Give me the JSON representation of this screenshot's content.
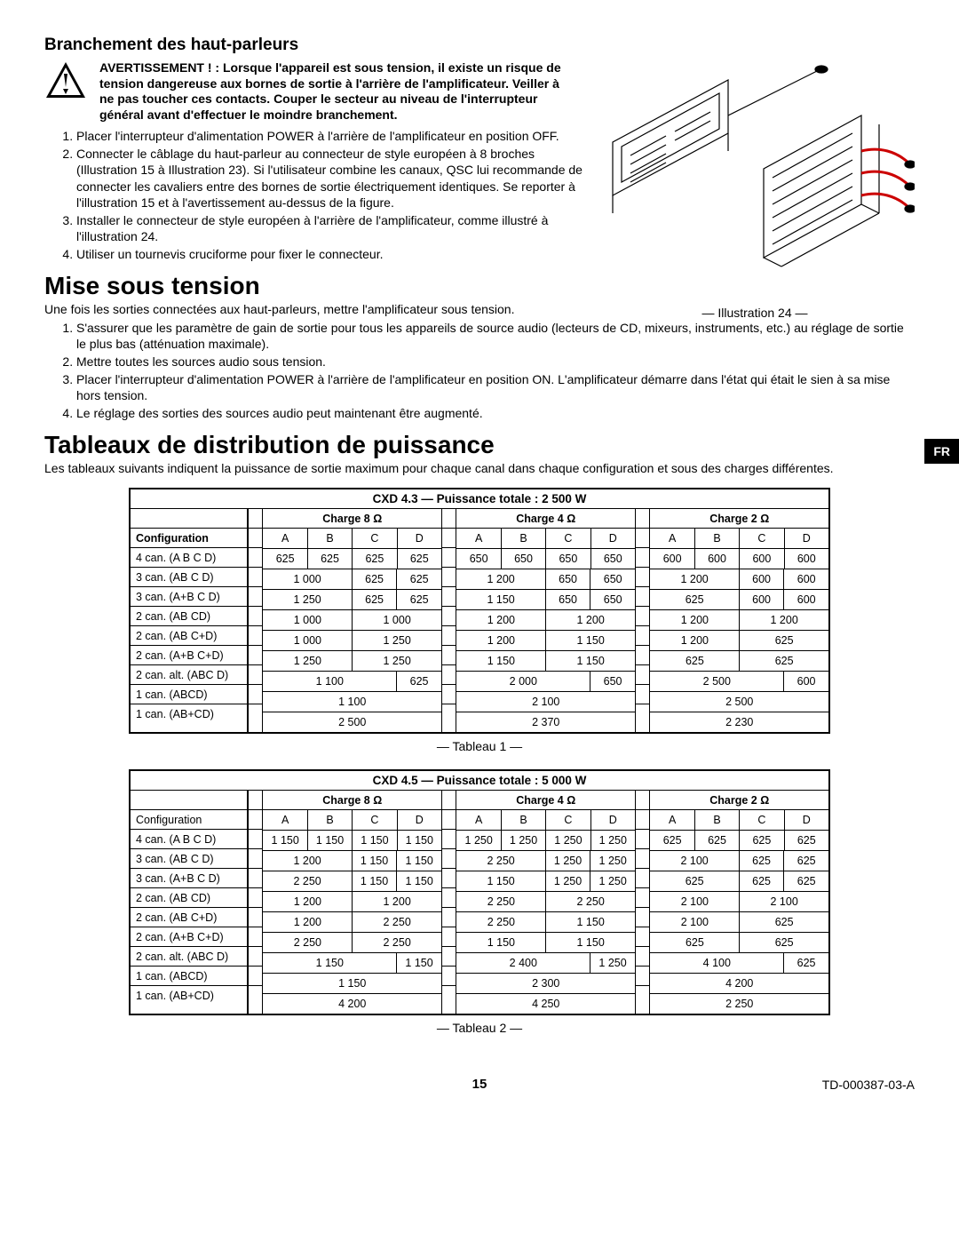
{
  "lang_tab": "FR",
  "section1": {
    "title": "Branchement des haut-parleurs",
    "warn_label": "AVERTISSEMENT ! :",
    "warn_body": "Lorsque l'appareil est sous tension, il existe un risque de tension dangereuse aux bornes de sortie à l'arrière de l'amplificateur. Veiller à ne pas toucher ces contacts. Couper le secteur au niveau de l'interrupteur général avant d'effectuer le moindre branchement.",
    "steps": [
      "Placer l'interrupteur d'alimentation POWER à l'arrière de l'amplificateur en position OFF.",
      "Connecter le câblage du haut-parleur au connecteur de style européen à 8 broches (Illustration 15 à Illustration 23). Si l'utilisateur combine les canaux, QSC lui recommande de connecter les cavaliers entre des bornes de sortie électriquement identiques. Se reporter à l'illustration 15 et à l'avertissement au-dessus de la figure.",
      "Installer le connecteur de style européen à l'arrière de l'amplificateur, comme illustré à l'illustration 24.",
      "Utiliser un tournevis cruciforme pour fixer le connecteur."
    ]
  },
  "illus_caption": "— Illustration 24 —",
  "section2": {
    "title": "Mise sous tension",
    "intro": "Une fois les sorties connectées aux haut-parleurs, mettre l'amplificateur sous tension.",
    "steps": [
      "S'assurer que les paramètre de gain de sortie pour tous les appareils de source audio (lecteurs de CD, mixeurs, instruments, etc.) au réglage de sortie le plus bas (atténuation maximale).",
      "Mettre toutes les sources audio sous tension.",
      "Placer l'interrupteur d'alimentation POWER à l'arrière de l'amplificateur en position ON. L'amplificateur démarre dans l'état qui était le sien à sa mise hors tension.",
      "Le réglage des sorties des sources audio peut maintenant être augmenté."
    ]
  },
  "section3": {
    "title": "Tableaux de distribution de puissance",
    "intro": "Les tableaux suivants indiquent la puissance de sortie maximum pour chaque canal dans chaque configuration et sous des charges différentes."
  },
  "tables_common": {
    "config_header": "Configuration",
    "cols": [
      "A",
      "B",
      "C",
      "D"
    ],
    "loads": [
      "Charge 8 Ω",
      "Charge 4 Ω",
      "Charge 2 Ω"
    ],
    "configs": [
      "4 can. (A B C D)",
      "3 can. (AB C D)",
      "3 can. (A+B C D)",
      "2 can. (AB CD)",
      "2 can. (AB C+D)",
      "2 can. (A+B C+D)",
      "2 can. alt. (ABC D)",
      "1 can. (ABCD)",
      "1 can. (AB+CD)"
    ]
  },
  "table1": {
    "title": "CXD 4.3 — Puissance totale : 2 500 W",
    "caption": "— Tableau 1 —",
    "config_hdr_bold": true,
    "data": [
      [
        [
          [
            "625",
            "625",
            "625",
            "625"
          ]
        ],
        [
          [
            "650",
            "650",
            "650",
            "650"
          ]
        ],
        [
          [
            "600",
            "600",
            "600",
            "600"
          ]
        ]
      ],
      [
        [
          [
            "1 000",
            "",
            "625",
            "625"
          ],
          [
            2,
            1,
            1
          ]
        ],
        [
          [
            "1 200",
            "",
            "650",
            "650"
          ],
          [
            2,
            1,
            1
          ]
        ],
        [
          [
            "1 200",
            "",
            "600",
            "600"
          ],
          [
            2,
            1,
            1
          ]
        ]
      ],
      [
        [
          [
            "1 250",
            "",
            "625",
            "625"
          ],
          [
            2,
            1,
            1
          ]
        ],
        [
          [
            "1 150",
            "",
            "650",
            "650"
          ],
          [
            2,
            1,
            1
          ]
        ],
        [
          [
            "625",
            "",
            "600",
            "600"
          ],
          [
            2,
            1,
            1
          ]
        ]
      ],
      [
        [
          [
            "1 000",
            "1 000"
          ],
          [
            2,
            2
          ]
        ],
        [
          [
            "1 200",
            "1 200"
          ],
          [
            2,
            2
          ]
        ],
        [
          [
            "1 200",
            "1 200"
          ],
          [
            2,
            2
          ]
        ]
      ],
      [
        [
          [
            "1 000",
            "1 250"
          ],
          [
            2,
            2
          ]
        ],
        [
          [
            "1 200",
            "1 150"
          ],
          [
            2,
            2
          ]
        ],
        [
          [
            "1 200",
            "625"
          ],
          [
            2,
            2
          ]
        ]
      ],
      [
        [
          [
            "1 250",
            "1 250"
          ],
          [
            2,
            2
          ]
        ],
        [
          [
            "1 150",
            "1 150"
          ],
          [
            2,
            2
          ]
        ],
        [
          [
            "625",
            "625"
          ],
          [
            2,
            2
          ]
        ]
      ],
      [
        [
          [
            "1 100",
            "625"
          ],
          [
            3,
            1
          ]
        ],
        [
          [
            "2 000",
            "650"
          ],
          [
            3,
            1
          ]
        ],
        [
          [
            "2 500",
            "600"
          ],
          [
            3,
            1
          ]
        ]
      ],
      [
        [
          [
            "1 100"
          ],
          [
            4
          ]
        ],
        [
          [
            "2 100"
          ],
          [
            4
          ]
        ],
        [
          [
            "2 500"
          ],
          [
            4
          ]
        ]
      ],
      [
        [
          [
            "2 500"
          ],
          [
            4
          ]
        ],
        [
          [
            "2 370"
          ],
          [
            4
          ]
        ],
        [
          [
            "2 230"
          ],
          [
            4
          ]
        ]
      ]
    ]
  },
  "table2": {
    "title": "CXD 4.5 — Puissance totale : 5 000 W",
    "caption": "— Tableau 2 —",
    "config_hdr_bold": false,
    "data": [
      [
        [
          [
            "1 150",
            "1 150",
            "1 150",
            "1 150"
          ]
        ],
        [
          [
            "1 250",
            "1 250",
            "1 250",
            "1 250"
          ]
        ],
        [
          [
            "625",
            "625",
            "625",
            "625"
          ]
        ]
      ],
      [
        [
          [
            "1 200",
            "",
            "1 150",
            "1 150"
          ],
          [
            2,
            1,
            1
          ]
        ],
        [
          [
            "2 250",
            "",
            "1 250",
            "1 250"
          ],
          [
            2,
            1,
            1
          ]
        ],
        [
          [
            "2 100",
            "",
            "625",
            "625"
          ],
          [
            2,
            1,
            1
          ]
        ]
      ],
      [
        [
          [
            "2 250",
            "",
            "1 150",
            "1 150"
          ],
          [
            2,
            1,
            1
          ]
        ],
        [
          [
            "1 150",
            "",
            "1 250",
            "1 250"
          ],
          [
            2,
            1,
            1
          ]
        ],
        [
          [
            "625",
            "",
            "625",
            "625"
          ],
          [
            2,
            1,
            1
          ]
        ]
      ],
      [
        [
          [
            "1 200",
            "1 200"
          ],
          [
            2,
            2
          ]
        ],
        [
          [
            "2 250",
            "2 250"
          ],
          [
            2,
            2
          ]
        ],
        [
          [
            "2 100",
            "2 100"
          ],
          [
            2,
            2
          ]
        ]
      ],
      [
        [
          [
            "1 200",
            "2 250"
          ],
          [
            2,
            2
          ]
        ],
        [
          [
            "2 250",
            "1 150"
          ],
          [
            2,
            2
          ]
        ],
        [
          [
            "2 100",
            "625"
          ],
          [
            2,
            2
          ]
        ]
      ],
      [
        [
          [
            "2 250",
            "2 250"
          ],
          [
            2,
            2
          ]
        ],
        [
          [
            "1 150",
            "1 150"
          ],
          [
            2,
            2
          ]
        ],
        [
          [
            "625",
            "625"
          ],
          [
            2,
            2
          ]
        ]
      ],
      [
        [
          [
            "1 150",
            "1 150"
          ],
          [
            3,
            1
          ]
        ],
        [
          [
            "2 400",
            "1 250"
          ],
          [
            3,
            1
          ]
        ],
        [
          [
            "4 100",
            "625"
          ],
          [
            3,
            1
          ]
        ]
      ],
      [
        [
          [
            "1 150"
          ],
          [
            4
          ]
        ],
        [
          [
            "2 300"
          ],
          [
            4
          ]
        ],
        [
          [
            "4 200"
          ],
          [
            4
          ]
        ]
      ],
      [
        [
          [
            "4 200"
          ],
          [
            4
          ]
        ],
        [
          [
            "4 250"
          ],
          [
            4
          ]
        ],
        [
          [
            "2 250"
          ],
          [
            4
          ]
        ]
      ]
    ]
  },
  "footer": {
    "page": "15",
    "docid": "TD-000387-03-A"
  }
}
